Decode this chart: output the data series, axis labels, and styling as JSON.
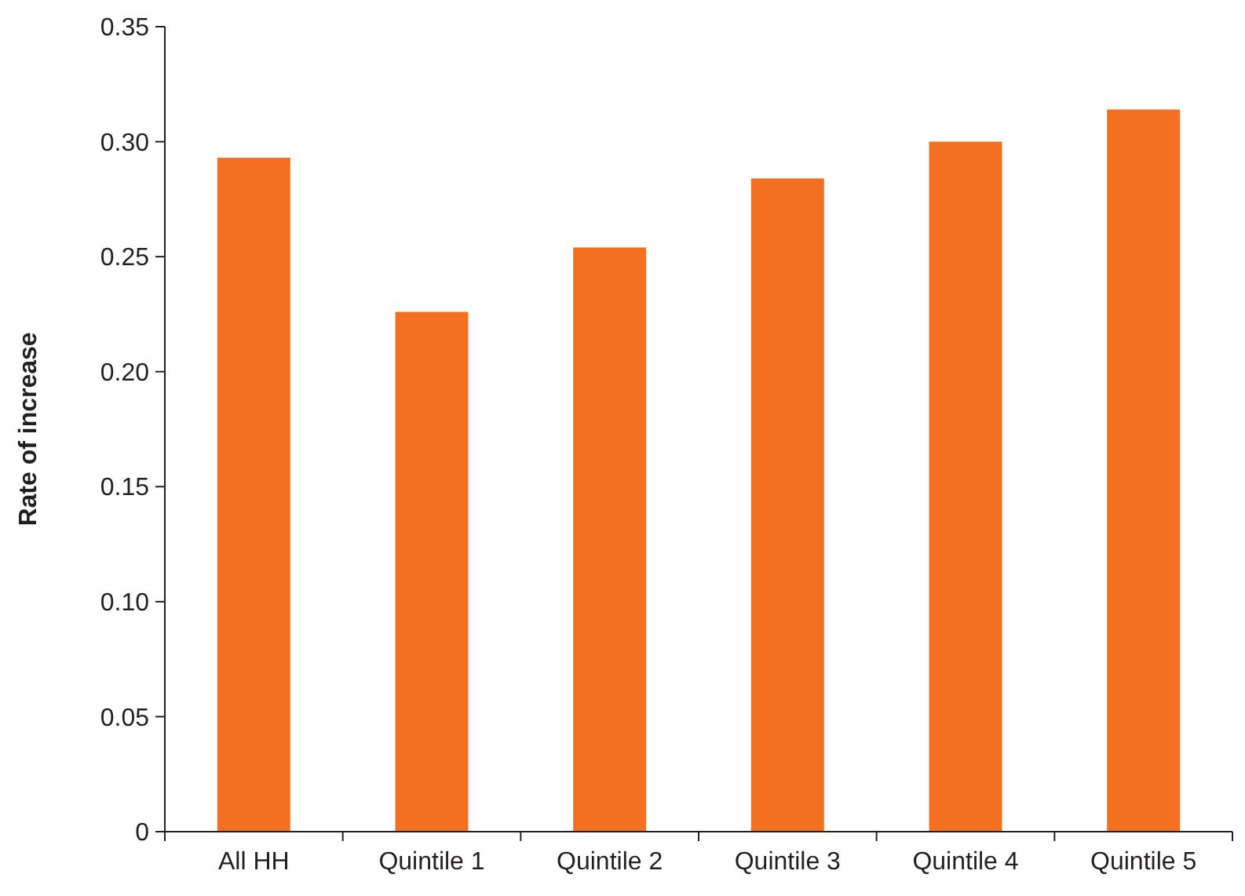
{
  "chart_data": {
    "type": "bar",
    "ylabel": "Rate of increase",
    "categories": [
      "All HH",
      "Quintile 1",
      "Quintile 2",
      "Quintile 3",
      "Quintile 4",
      "Quintile 5"
    ],
    "values": [
      0.293,
      0.226,
      0.254,
      0.284,
      0.3,
      0.314
    ],
    "color": "#f37021",
    "ylim": [
      0,
      0.35
    ],
    "yticks": [
      0,
      0.05,
      {
        "value": 0.1,
        "label": "0.10"
      },
      0.15,
      {
        "value": 0.2,
        "label": "0.20"
      },
      0.25,
      {
        "value": 0.3,
        "label": "0.30"
      },
      0.35
    ],
    "grid": false
  }
}
